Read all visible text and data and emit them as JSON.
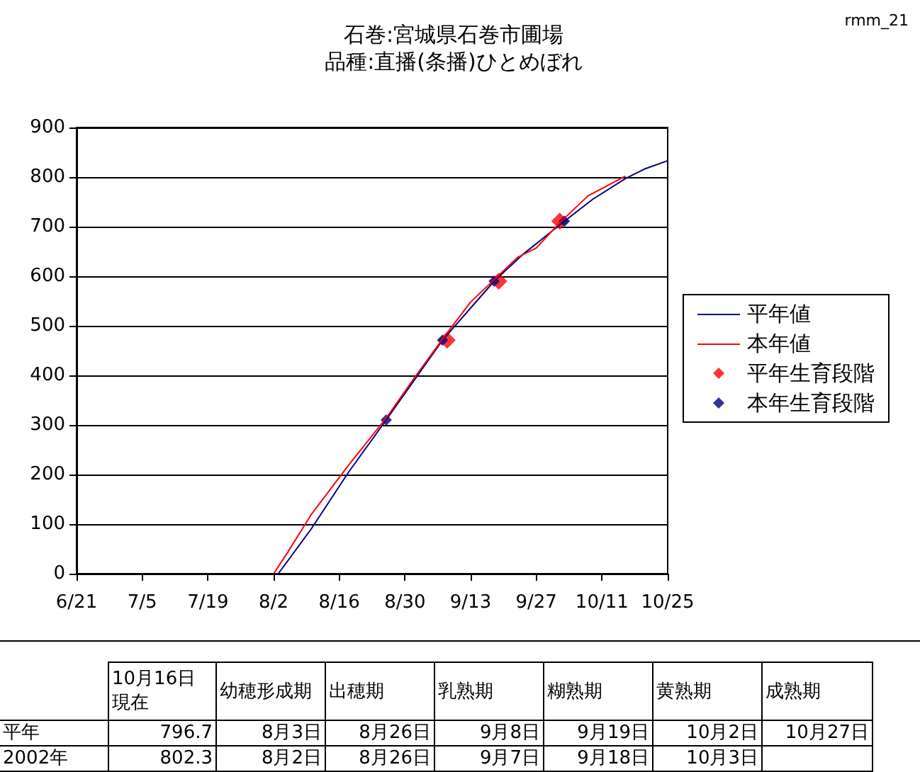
{
  "chart_data": {
    "type": "line",
    "title": "石巻:宮城県石巻市圃場",
    "subtitle": "品種:直播(条播)ひとめぼれ",
    "xlim": [
      "--06-21",
      "--10-25"
    ],
    "xticks": [
      {
        "value": "--06-21",
        "label": "6/21"
      },
      {
        "value": "--07-05",
        "label": "7/5"
      },
      {
        "value": "--07-19",
        "label": "7/19"
      },
      {
        "value": "--08-02",
        "label": "8/2"
      },
      {
        "value": "--08-16",
        "label": "8/16"
      },
      {
        "value": "--08-30",
        "label": "8/30"
      },
      {
        "value": "--09-13",
        "label": "9/13"
      },
      {
        "value": "--09-27",
        "label": "9/27"
      },
      {
        "value": "--10-11",
        "label": "10/11"
      },
      {
        "value": "--10-25",
        "label": "10/25"
      }
    ],
    "ylim": [
      0,
      900
    ],
    "yticks": [
      0,
      100,
      200,
      300,
      400,
      500,
      600,
      700,
      800,
      900
    ],
    "grid": "y",
    "legend": "right",
    "series": [
      {
        "name": "平年値",
        "color": "#000080",
        "x": [
          "--08-03",
          "--08-10",
          "--08-18",
          "--08-26",
          "--09-07",
          "--09-18",
          "--09-24",
          "--10-03",
          "--10-09",
          "--10-16",
          "--10-20",
          "--10-25"
        ],
        "values": [
          0,
          90,
          205,
          310,
          471,
          590,
          643,
          711,
          755,
          797,
          816,
          833
        ]
      },
      {
        "name": "本年値",
        "color": "#ff0000",
        "x": [
          "--08-02",
          "--08-05",
          "--08-10",
          "--08-18",
          "--08-26",
          "--09-01",
          "--09-07",
          "--09-13",
          "--09-18",
          "--09-23",
          "--09-27",
          "--10-02",
          "--10-08",
          "--10-16"
        ],
        "values": [
          0,
          43,
          119,
          219,
          314,
          395,
          473,
          548,
          593,
          638,
          657,
          708,
          762,
          802
        ]
      },
      {
        "name": "平年生育段階",
        "type": "scatter",
        "marker": "diamond",
        "color": "#ff0000",
        "x": [
          "--09-08",
          "--09-19",
          "--10-02"
        ],
        "values": [
          471,
          590,
          711
        ]
      },
      {
        "name": "本年生育段階",
        "type": "scatter",
        "marker": "diamond",
        "color": "#000080",
        "x": [
          "--08-26",
          "--09-07",
          "--09-18",
          "--10-03"
        ],
        "values": [
          310,
          471,
          590,
          711
        ]
      }
    ],
    "annotations": [
      "rmm_21",
      "10月16日現在",
      "幼穂形成期",
      "出穂期",
      "乳熟期",
      "糊熟期",
      "黄熟期",
      "成熟期",
      "平年",
      "796.7",
      "8月3日",
      "8月26日",
      "9月8日",
      "9月19日",
      "10月2日",
      "10月27日",
      "2002年",
      "802.3",
      "8月2日",
      "8月26日",
      "9月7日",
      "9月18日",
      "10月3日"
    ]
  }
}
